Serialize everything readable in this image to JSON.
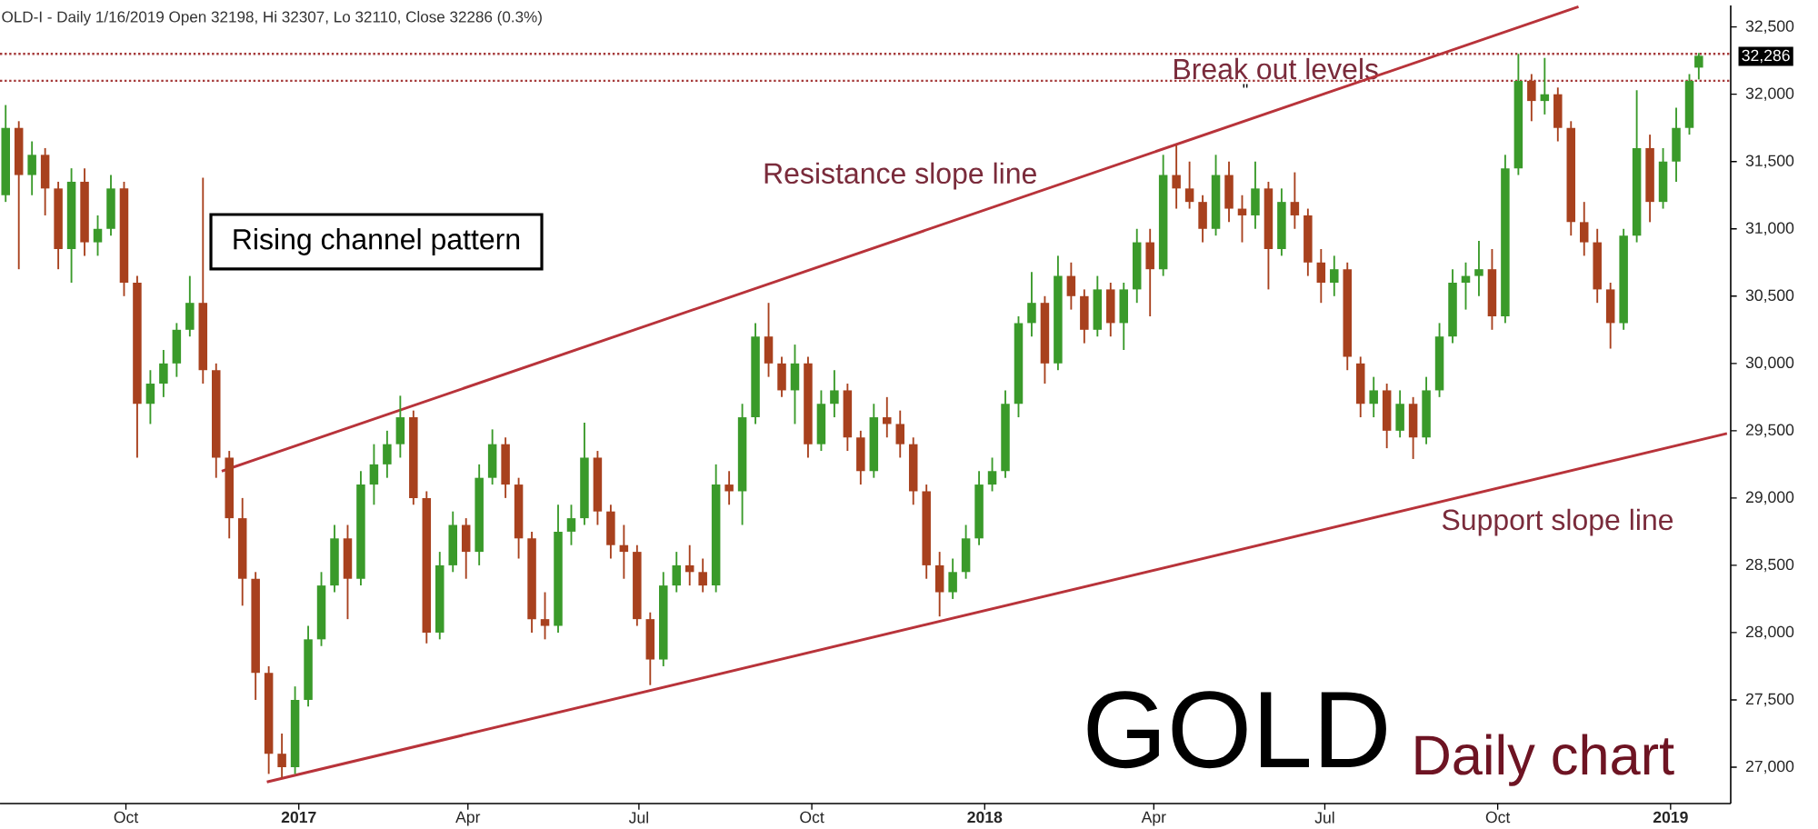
{
  "chart_data": {
    "type": "candlestick",
    "title": "OLD-I - Daily 1/16/2019 Open 32198, Hi 32307, Lo 32110, Close 32286 (0.3%)",
    "xlim": [
      "2016-07-26",
      "2019-02-02"
    ],
    "ylim": [
      26730,
      32660
    ],
    "xticks": [
      {
        "value": "2016-10-01",
        "label": "Oct"
      },
      {
        "value": "2017-01-01",
        "label": "2017"
      },
      {
        "value": "2017-04-01",
        "label": "Apr"
      },
      {
        "value": "2017-07-01",
        "label": "Jul"
      },
      {
        "value": "2017-10-01",
        "label": "Oct"
      },
      {
        "value": "2018-01-01",
        "label": "2018"
      },
      {
        "value": "2018-04-01",
        "label": "Apr"
      },
      {
        "value": "2018-07-01",
        "label": "Jul"
      },
      {
        "value": "2018-10-01",
        "label": "Oct"
      },
      {
        "value": "2019-01-01",
        "label": "2019"
      }
    ],
    "yticks": [
      {
        "value": 32500,
        "label": "32,500"
      },
      {
        "value": 32000,
        "label": "32,000"
      },
      {
        "value": 31500,
        "label": "31,500"
      },
      {
        "value": 31000,
        "label": "31,000"
      },
      {
        "value": 30500,
        "label": "30,500"
      },
      {
        "value": 30000,
        "label": "30,000"
      },
      {
        "value": 29500,
        "label": "29,500"
      },
      {
        "value": 29000,
        "label": "29,000"
      },
      {
        "value": 28500,
        "label": "28,500"
      },
      {
        "value": 28000,
        "label": "28,000"
      },
      {
        "value": 27500,
        "label": "27,500"
      },
      {
        "value": 27000,
        "label": "27,000"
      }
    ],
    "ref_lines": [
      {
        "axis": "y",
        "value": 32300,
        "label": "Break out levels",
        "color": "#a53a3a",
        "line_style": "dotted"
      },
      {
        "axis": "y",
        "value": 32100,
        "color": "#a53a3a",
        "line_style": "dotted"
      }
    ],
    "annotations": [
      "Rising channel pattern",
      "GOLD",
      "Daily chart",
      "\"",
      "32,286"
    ],
    "series": [
      {
        "x": [
          "2016-07-29",
          "2016-08-05",
          "2016-08-12",
          "2016-08-19",
          "2016-08-26",
          "2016-09-02",
          "2016-09-09",
          "2016-09-16",
          "2016-09-23",
          "2016-09-30",
          "2016-10-07",
          "2016-10-14",
          "2016-10-21",
          "2016-10-28",
          "2016-11-04",
          "2016-11-11",
          "2016-11-18",
          "2016-11-25",
          "2016-12-02",
          "2016-12-09",
          "2016-12-16",
          "2016-12-23",
          "2016-12-30",
          "2017-01-06",
          "2017-01-13",
          "2017-01-20",
          "2017-01-27",
          "2017-02-03",
          "2017-02-10",
          "2017-02-17",
          "2017-02-24",
          "2017-03-03",
          "2017-03-10",
          "2017-03-17",
          "2017-03-24",
          "2017-03-31",
          "2017-04-07",
          "2017-04-14",
          "2017-04-21",
          "2017-04-28",
          "2017-05-05",
          "2017-05-12",
          "2017-05-19",
          "2017-05-26",
          "2017-06-02",
          "2017-06-09",
          "2017-06-16",
          "2017-06-23",
          "2017-06-30",
          "2017-07-07",
          "2017-07-14",
          "2017-07-21",
          "2017-07-28",
          "2017-08-04",
          "2017-08-11",
          "2017-08-18",
          "2017-08-25",
          "2017-09-01",
          "2017-09-08",
          "2017-09-15",
          "2017-09-22",
          "2017-09-29",
          "2017-10-06",
          "2017-10-13",
          "2017-10-20",
          "2017-10-27",
          "2017-11-03",
          "2017-11-10",
          "2017-11-17",
          "2017-11-24",
          "2017-12-01",
          "2017-12-08",
          "2017-12-15",
          "2017-12-22",
          "2017-12-29",
          "2018-01-05",
          "2018-01-12",
          "2018-01-19",
          "2018-01-26",
          "2018-02-02",
          "2018-02-09",
          "2018-02-16",
          "2018-02-23",
          "2018-03-02",
          "2018-03-09",
          "2018-03-16",
          "2018-03-23",
          "2018-03-30",
          "2018-04-06",
          "2018-04-13",
          "2018-04-20",
          "2018-04-27",
          "2018-05-04",
          "2018-05-11",
          "2018-05-18",
          "2018-05-25",
          "2018-06-01",
          "2018-06-08",
          "2018-06-15",
          "2018-06-22",
          "2018-06-29",
          "2018-07-06",
          "2018-07-13",
          "2018-07-20",
          "2018-07-27",
          "2018-08-03",
          "2018-08-10",
          "2018-08-17",
          "2018-08-24",
          "2018-08-31",
          "2018-09-07",
          "2018-09-14",
          "2018-09-21",
          "2018-09-28",
          "2018-10-05",
          "2018-10-12",
          "2018-10-19",
          "2018-10-26",
          "2018-11-02",
          "2018-11-09",
          "2018-11-16",
          "2018-11-23",
          "2018-11-30",
          "2018-12-07",
          "2018-12-14",
          "2018-12-21",
          "2018-12-28",
          "2019-01-04",
          "2019-01-11",
          "2019-01-16"
        ],
        "ohlc": [
          [
            31250,
            31920,
            31200,
            31750
          ],
          [
            31750,
            31800,
            30700,
            31400
          ],
          [
            31400,
            31650,
            31250,
            31550
          ],
          [
            31550,
            31600,
            31100,
            31300
          ],
          [
            31300,
            31350,
            30700,
            30850
          ],
          [
            30850,
            31450,
            30600,
            31350
          ],
          [
            31350,
            31450,
            30800,
            30900
          ],
          [
            30900,
            31100,
            30800,
            31000
          ],
          [
            31000,
            31400,
            30950,
            31300
          ],
          [
            31300,
            31350,
            30500,
            30600
          ],
          [
            30600,
            30650,
            29300,
            29700
          ],
          [
            29700,
            29950,
            29550,
            29850
          ],
          [
            29850,
            30100,
            29750,
            30000
          ],
          [
            30000,
            30300,
            29900,
            30250
          ],
          [
            30250,
            30650,
            30200,
            30450
          ],
          [
            30450,
            31380,
            29850,
            29950
          ],
          [
            29950,
            30000,
            29150,
            29300
          ],
          [
            29300,
            29350,
            28700,
            28850
          ],
          [
            28850,
            29000,
            28200,
            28400
          ],
          [
            28400,
            28450,
            27500,
            27700
          ],
          [
            27700,
            27750,
            26950,
            27100
          ],
          [
            27100,
            27250,
            26920,
            27000
          ],
          [
            27000,
            27600,
            26950,
            27500
          ],
          [
            27500,
            28050,
            27450,
            27950
          ],
          [
            27950,
            28450,
            27900,
            28350
          ],
          [
            28350,
            28800,
            28300,
            28700
          ],
          [
            28700,
            28800,
            28100,
            28400
          ],
          [
            28400,
            29200,
            28350,
            29100
          ],
          [
            29100,
            29400,
            28950,
            29250
          ],
          [
            29250,
            29500,
            29150,
            29400
          ],
          [
            29400,
            29760,
            29300,
            29600
          ],
          [
            29600,
            29650,
            28950,
            29000
          ],
          [
            29000,
            29050,
            27920,
            28000
          ],
          [
            28000,
            28600,
            27950,
            28500
          ],
          [
            28500,
            28900,
            28450,
            28800
          ],
          [
            28800,
            28850,
            28400,
            28600
          ],
          [
            28600,
            29250,
            28500,
            29150
          ],
          [
            29150,
            29510,
            29100,
            29400
          ],
          [
            29400,
            29450,
            29000,
            29100
          ],
          [
            29100,
            29150,
            28550,
            28700
          ],
          [
            28700,
            28750,
            28000,
            28100
          ],
          [
            28100,
            28300,
            27950,
            28050
          ],
          [
            28050,
            28950,
            28000,
            28750
          ],
          [
            28750,
            28950,
            28650,
            28850
          ],
          [
            28850,
            29560,
            28800,
            29300
          ],
          [
            29300,
            29350,
            28800,
            28900
          ],
          [
            28900,
            28950,
            28550,
            28650
          ],
          [
            28650,
            28800,
            28400,
            28600
          ],
          [
            28600,
            28650,
            28050,
            28100
          ],
          [
            28100,
            28150,
            27610,
            27800
          ],
          [
            27800,
            28450,
            27750,
            28350
          ],
          [
            28350,
            28600,
            28300,
            28500
          ],
          [
            28500,
            28650,
            28350,
            28450
          ],
          [
            28450,
            28550,
            28300,
            28350
          ],
          [
            28350,
            29250,
            28300,
            29100
          ],
          [
            29100,
            29200,
            28950,
            29050
          ],
          [
            29050,
            29700,
            28800,
            29600
          ],
          [
            29600,
            30300,
            29550,
            30200
          ],
          [
            30200,
            30450,
            29900,
            30000
          ],
          [
            30000,
            30050,
            29750,
            29800
          ],
          [
            29800,
            30140,
            29550,
            30000
          ],
          [
            30000,
            30050,
            29300,
            29400
          ],
          [
            29400,
            29800,
            29350,
            29700
          ],
          [
            29700,
            29950,
            29600,
            29800
          ],
          [
            29800,
            29850,
            29350,
            29450
          ],
          [
            29450,
            29500,
            29100,
            29200
          ],
          [
            29200,
            29700,
            29150,
            29600
          ],
          [
            29600,
            29750,
            29450,
            29550
          ],
          [
            29550,
            29650,
            29300,
            29400
          ],
          [
            29400,
            29450,
            28950,
            29050
          ],
          [
            29050,
            29100,
            28400,
            28500
          ],
          [
            28500,
            28600,
            28120,
            28300
          ],
          [
            28300,
            28550,
            28250,
            28450
          ],
          [
            28450,
            28800,
            28400,
            28700
          ],
          [
            28700,
            29200,
            28650,
            29100
          ],
          [
            29100,
            29300,
            29050,
            29200
          ],
          [
            29200,
            29800,
            29150,
            29700
          ],
          [
            29700,
            30350,
            29600,
            30300
          ],
          [
            30300,
            30680,
            30200,
            30450
          ],
          [
            30450,
            30500,
            29850,
            30000
          ],
          [
            30000,
            30800,
            29950,
            30650
          ],
          [
            30650,
            30750,
            30400,
            30500
          ],
          [
            30500,
            30550,
            30150,
            30250
          ],
          [
            30250,
            30650,
            30200,
            30550
          ],
          [
            30550,
            30600,
            30200,
            30300
          ],
          [
            30300,
            30600,
            30100,
            30550
          ],
          [
            30550,
            31000,
            30450,
            30900
          ],
          [
            30900,
            31000,
            30350,
            30700
          ],
          [
            30700,
            31550,
            30650,
            31400
          ],
          [
            31400,
            31620,
            31150,
            31300
          ],
          [
            31300,
            31500,
            31150,
            31200
          ],
          [
            31200,
            31250,
            30900,
            31000
          ],
          [
            31000,
            31550,
            30950,
            31400
          ],
          [
            31400,
            31500,
            31050,
            31150
          ],
          [
            31150,
            31250,
            30900,
            31100
          ],
          [
            31100,
            31500,
            31000,
            31300
          ],
          [
            31300,
            31350,
            30550,
            30850
          ],
          [
            30850,
            31300,
            30800,
            31200
          ],
          [
            31200,
            31420,
            31000,
            31100
          ],
          [
            31100,
            31150,
            30650,
            30750
          ],
          [
            30750,
            30850,
            30450,
            30600
          ],
          [
            30600,
            30800,
            30500,
            30700
          ],
          [
            30700,
            30750,
            29950,
            30050
          ],
          [
            30000,
            30050,
            29600,
            29700
          ],
          [
            29700,
            29900,
            29600,
            29800
          ],
          [
            29800,
            29850,
            29370,
            29500
          ],
          [
            29500,
            29800,
            29450,
            29700
          ],
          [
            29700,
            29750,
            29290,
            29450
          ],
          [
            29450,
            29900,
            29400,
            29800
          ],
          [
            29800,
            30300,
            29750,
            30200
          ],
          [
            30200,
            30700,
            30150,
            30600
          ],
          [
            30600,
            30750,
            30400,
            30650
          ],
          [
            30650,
            30910,
            30500,
            30700
          ],
          [
            30700,
            30850,
            30250,
            30350
          ],
          [
            30350,
            31550,
            30300,
            31450
          ],
          [
            31450,
            32300,
            31400,
            32100
          ],
          [
            32100,
            32150,
            31800,
            31950
          ],
          [
            31950,
            32270,
            31850,
            32000
          ],
          [
            32000,
            32050,
            31650,
            31750
          ],
          [
            31750,
            31800,
            30950,
            31050
          ],
          [
            31050,
            31200,
            30800,
            30900
          ],
          [
            30900,
            31000,
            30450,
            30550
          ],
          [
            30550,
            30600,
            30110,
            30300
          ],
          [
            30300,
            31000,
            30250,
            30950
          ],
          [
            30950,
            32030,
            30900,
            31600
          ],
          [
            31600,
            31700,
            31050,
            31200
          ],
          [
            31200,
            31600,
            31150,
            31500
          ],
          [
            31500,
            31900,
            31350,
            31750
          ],
          [
            31750,
            32150,
            31700,
            32100
          ],
          [
            32198,
            32307,
            32110,
            32286
          ]
        ],
        "colors": [
          "#3a9a2a",
          "#a8411e",
          "#3a9a2a",
          "#a8411e",
          "#a8411e",
          "#3a9a2a",
          "#a8411e",
          "#3a9a2a",
          "#3a9a2a",
          "#a8411e",
          "#a8411e",
          "#3a9a2a",
          "#3a9a2a",
          "#3a9a2a",
          "#3a9a2a",
          "#a8411e",
          "#a8411e",
          "#a8411e",
          "#a8411e",
          "#a8411e",
          "#a8411e",
          "#a8411e",
          "#3a9a2a",
          "#3a9a2a",
          "#3a9a2a",
          "#3a9a2a",
          "#a8411e",
          "#3a9a2a",
          "#3a9a2a",
          "#3a9a2a",
          "#3a9a2a",
          "#a8411e",
          "#a8411e",
          "#3a9a2a",
          "#3a9a2a",
          "#a8411e",
          "#3a9a2a",
          "#3a9a2a",
          "#a8411e",
          "#a8411e",
          "#a8411e",
          "#a8411e",
          "#3a9a2a",
          "#3a9a2a",
          "#3a9a2a",
          "#a8411e",
          "#a8411e",
          "#a8411e",
          "#a8411e",
          "#a8411e",
          "#3a9a2a",
          "#3a9a2a",
          "#a8411e",
          "#a8411e",
          "#3a9a2a",
          "#a8411e",
          "#3a9a2a",
          "#3a9a2a",
          "#a8411e",
          "#a8411e",
          "#3a9a2a",
          "#a8411e",
          "#3a9a2a",
          "#3a9a2a",
          "#a8411e",
          "#a8411e",
          "#3a9a2a",
          "#a8411e",
          "#a8411e",
          "#a8411e",
          "#a8411e",
          "#a8411e",
          "#3a9a2a",
          "#3a9a2a",
          "#3a9a2a",
          "#3a9a2a",
          "#3a9a2a",
          "#3a9a2a",
          "#3a9a2a",
          "#a8411e",
          "#3a9a2a",
          "#a8411e",
          "#a8411e",
          "#3a9a2a",
          "#a8411e",
          "#3a9a2a",
          "#3a9a2a",
          "#a8411e",
          "#3a9a2a",
          "#a8411e",
          "#a8411e",
          "#a8411e",
          "#3a9a2a",
          "#a8411e",
          "#a8411e",
          "#3a9a2a",
          "#a8411e",
          "#3a9a2a",
          "#a8411e",
          "#a8411e",
          "#a8411e",
          "#3a9a2a",
          "#a8411e",
          "#a8411e",
          "#3a9a2a",
          "#a8411e",
          "#3a9a2a",
          "#a8411e",
          "#3a9a2a",
          "#3a9a2a",
          "#3a9a2a",
          "#3a9a2a",
          "#3a9a2a",
          "#a8411e",
          "#3a9a2a",
          "#3a9a2a",
          "#a8411e",
          "#3a9a2a",
          "#a8411e",
          "#a8411e",
          "#a8411e",
          "#a8411e",
          "#a8411e",
          "#3a9a2a",
          "#3a9a2a",
          "#a8411e",
          "#3a9a2a",
          "#3a9a2a",
          "#3a9a2a",
          "#3a9a2a"
        ]
      },
      {
        "type": "line",
        "name": "Resistance slope line",
        "color": "#b8333a",
        "x": [
          "2016-11-21",
          "2018-11-13"
        ],
        "values": [
          29200,
          32650
        ]
      },
      {
        "type": "line",
        "name": "Support slope line",
        "color": "#b8333a",
        "x": [
          "2016-12-15",
          "2019-01-31"
        ],
        "values": [
          26890,
          29480
        ]
      }
    ]
  }
}
